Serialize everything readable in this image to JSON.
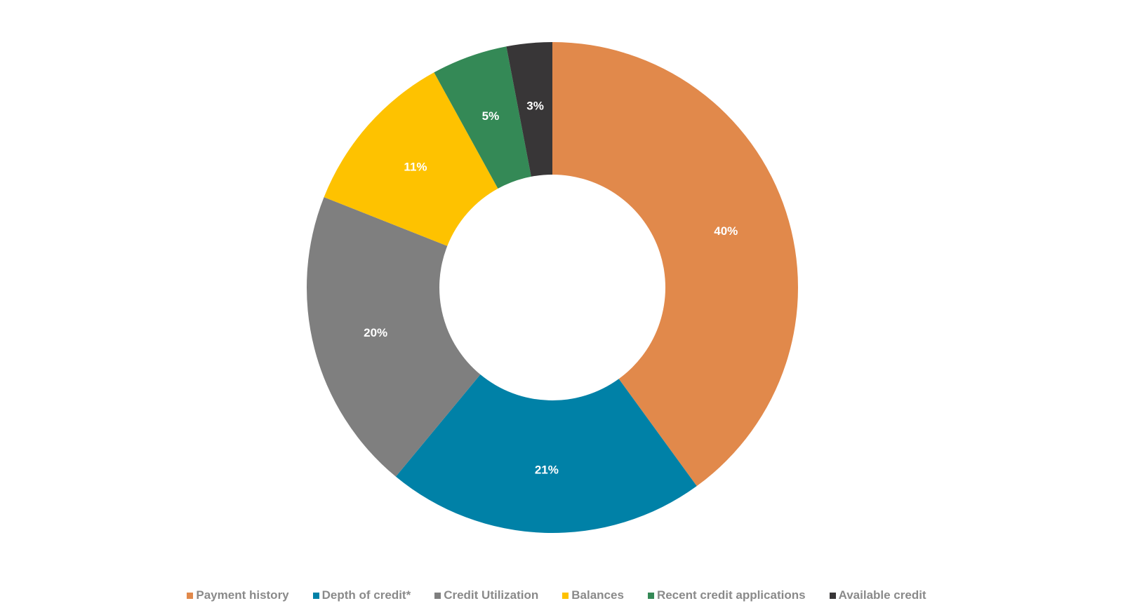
{
  "chart_data": {
    "type": "pie",
    "variant": "donut",
    "title": "",
    "series": [
      {
        "name": "Payment history",
        "value": 40,
        "label": "40%",
        "color": "#e1894b"
      },
      {
        "name": "Depth of credit*",
        "value": 21,
        "label": "21%",
        "color": "#0081a7"
      },
      {
        "name": "Credit Utilization",
        "value": 20,
        "label": "20%",
        "color": "#7f7f7f"
      },
      {
        "name": "Balances",
        "value": 11,
        "label": "11%",
        "color": "#fec200"
      },
      {
        "name": "Recent credit applications",
        "value": 5,
        "label": "5%",
        "color": "#348956"
      },
      {
        "name": "Available credit",
        "value": 3,
        "label": "3%",
        "color": "#383637"
      }
    ],
    "start_angle": "12 o'clock",
    "direction": "clockwise",
    "legend": {
      "position": "bottom",
      "label_color": "#8a8a8a"
    },
    "data_label_color": "#ffffff"
  }
}
